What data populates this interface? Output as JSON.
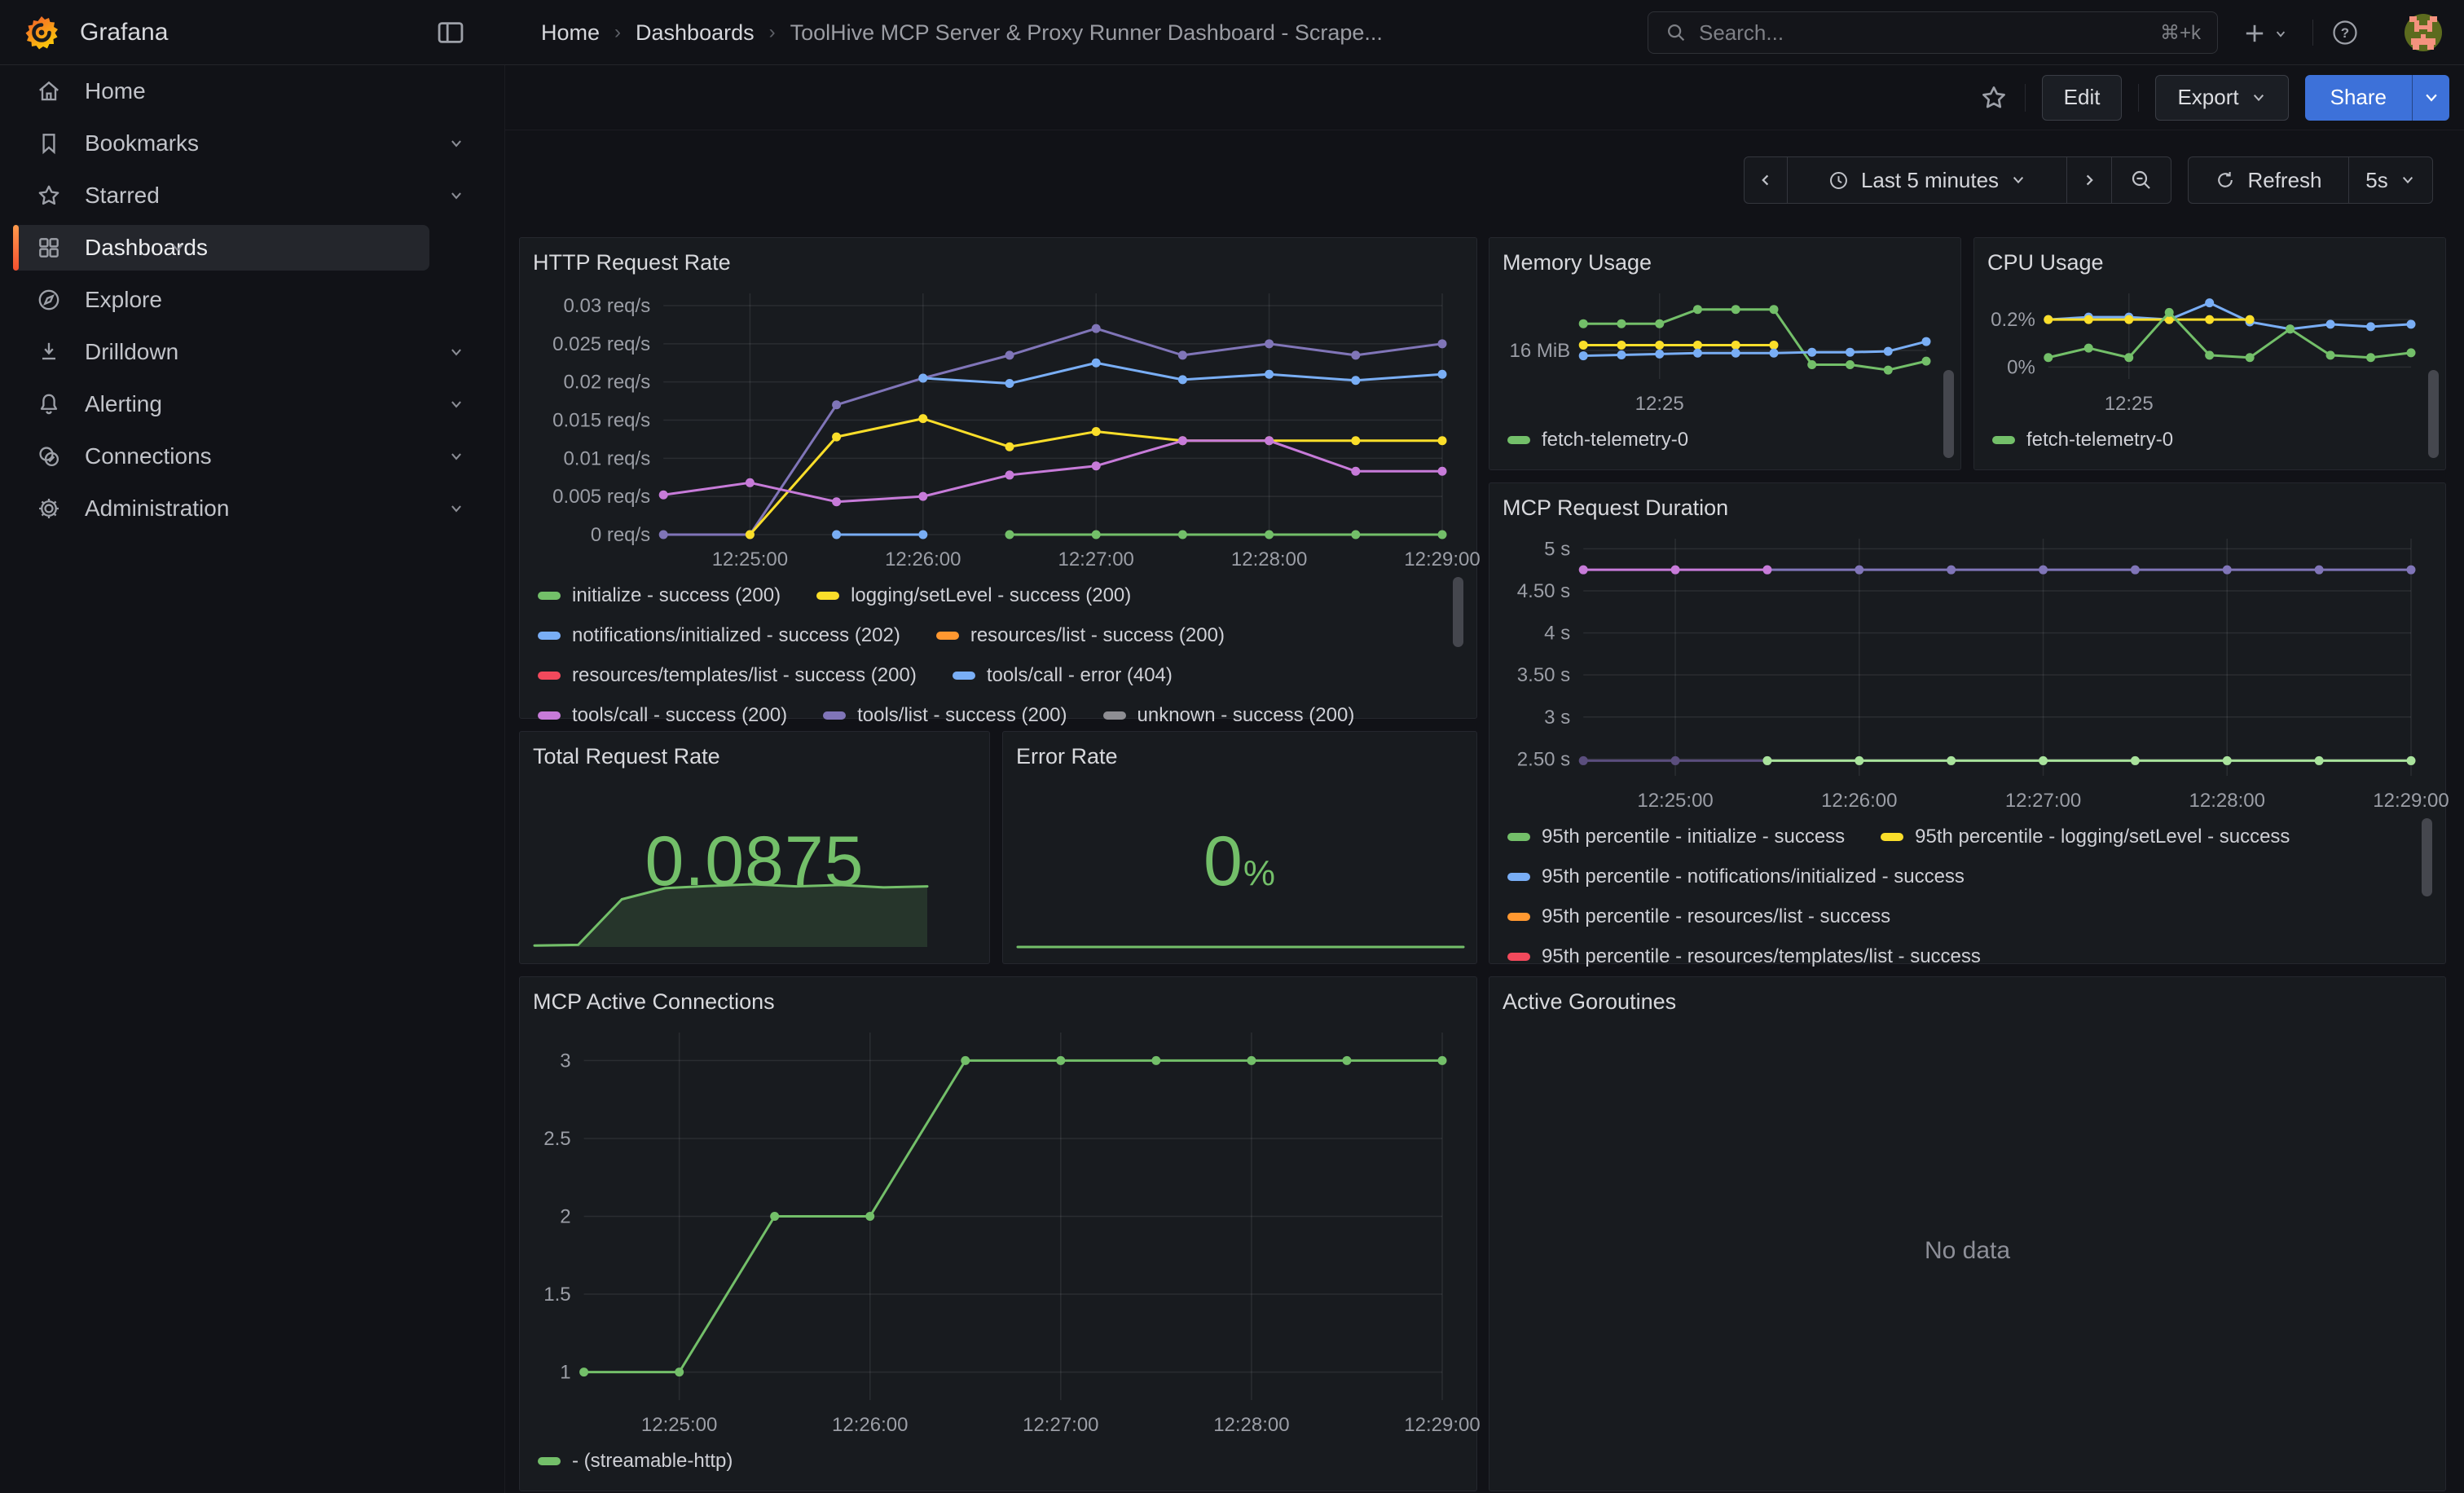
{
  "palette": {
    "green": "#73BF69",
    "light_green": "#A9E39C",
    "yellow": "#FADE2A",
    "blue": "#79AEF5",
    "orange": "#FF9830",
    "red": "#F2495C",
    "violet": "#C77BD9",
    "purple": "#8075B8",
    "dark_purple": "#5A4E7D",
    "accent_blue": "#3D71D9",
    "active_bar_top": "#FF9A4D",
    "active_bar_bottom": "#F4502F",
    "panel_bg": "#181B1F",
    "page_bg": "#111217",
    "text": "#D8D9DD",
    "tick_text": "#9B9EA6"
  },
  "header": {
    "brand": "Grafana",
    "breadcrumb": {
      "home": "Home",
      "section": "Dashboards",
      "current": "ToolHive MCP Server & Proxy Runner Dashboard - Scrape..."
    },
    "search": {
      "placeholder": "Search...",
      "shortcut": "⌘+k"
    }
  },
  "toolbar": {
    "edit": "Edit",
    "export": "Export",
    "share": "Share"
  },
  "timebar": {
    "range": "Last 5 minutes",
    "refresh": "Refresh",
    "interval": "5s"
  },
  "sidebar": {
    "items": [
      {
        "label": "Home",
        "icon": "home-icon",
        "has_submenu": false,
        "active": false
      },
      {
        "label": "Bookmarks",
        "icon": "bookmark-icon",
        "has_submenu": true,
        "active": false
      },
      {
        "label": "Starred",
        "icon": "star-icon",
        "has_submenu": true,
        "active": false
      },
      {
        "label": "Dashboards",
        "icon": "dashboards-grid-icon",
        "has_submenu": true,
        "active": true
      },
      {
        "label": "Explore",
        "icon": "compass-icon",
        "has_submenu": false,
        "active": false
      },
      {
        "label": "Drilldown",
        "icon": "drilldown-icon",
        "has_submenu": true,
        "active": false
      },
      {
        "label": "Alerting",
        "icon": "bell-icon",
        "has_submenu": true,
        "active": false
      },
      {
        "label": "Connections",
        "icon": "connections-icon",
        "has_submenu": true,
        "active": false
      },
      {
        "label": "Administration",
        "icon": "gear-icon",
        "has_submenu": true,
        "active": false
      }
    ]
  },
  "panels": {
    "http": {
      "title": "HTTP Request Rate",
      "chart_data": {
        "type": "line",
        "x": [
          "12:24:30",
          "12:25:00",
          "12:25:30",
          "12:26:00",
          "12:26:30",
          "12:27:00",
          "12:27:30",
          "12:28:00",
          "12:28:30",
          "12:29:00"
        ],
        "xticks": [
          {
            "i": 1,
            "label": "12:25:00"
          },
          {
            "i": 3,
            "label": "12:26:00"
          },
          {
            "i": 5,
            "label": "12:27:00"
          },
          {
            "i": 7,
            "label": "12:28:00"
          },
          {
            "i": 9,
            "label": "12:29:00"
          }
        ],
        "ylim": [
          0,
          0.0316
        ],
        "yticks": [
          {
            "v": 0,
            "label": "0 req/s"
          },
          {
            "v": 0.005,
            "label": "0.005 req/s"
          },
          {
            "v": 0.01,
            "label": "0.01 req/s"
          },
          {
            "v": 0.015,
            "label": "0.015 req/s"
          },
          {
            "v": 0.02,
            "label": "0.02 req/s"
          },
          {
            "v": 0.025,
            "label": "0.025 req/s"
          },
          {
            "v": 0.03,
            "label": "0.03 req/s"
          }
        ],
        "series": [
          {
            "name": "tools/list - success (200)",
            "color": "#8075B8",
            "values": [
              0,
              0,
              0.017,
              0.0205,
              0.0235,
              0.027,
              0.0235,
              0.025,
              0.0235,
              0.025
            ]
          },
          {
            "name": "notifications/initialized - success (202)",
            "color": "#79AEF5",
            "values": [
              null,
              null,
              null,
              0.0205,
              0.0198,
              0.0225,
              0.0203,
              0.021,
              0.0202,
              0.021
            ]
          },
          {
            "name": "tools/call - error (404)",
            "color": "#79AEF5",
            "values": [
              null,
              null,
              0,
              0,
              null,
              null,
              null,
              null,
              null,
              null
            ]
          },
          {
            "name": "logging/setLevel - success (200)",
            "color": "#FADE2A",
            "values": [
              null,
              0,
              0.0128,
              0.0152,
              0.0115,
              0.0135,
              0.0123,
              0.0123,
              0.0123,
              0.0123
            ]
          },
          {
            "name": "tools/call - success (200)",
            "color": "#C77BD9",
            "values": [
              0.0052,
              0.0068,
              0.0043,
              0.005,
              0.0078,
              0.009,
              0.0123,
              0.0123,
              0.0083,
              0.0083
            ]
          },
          {
            "name": "initialize - success (200)",
            "color": "#73BF69",
            "values": [
              null,
              null,
              null,
              null,
              0,
              0,
              0,
              0,
              0,
              0
            ]
          }
        ],
        "legend_rows": [
          [
            {
              "color": "#73BF69",
              "label": "initialize - success (200)"
            },
            {
              "color": "#FADE2A",
              "label": "logging/setLevel - success (200)"
            }
          ],
          [
            {
              "color": "#79AEF5",
              "label": "notifications/initialized - success (202)"
            },
            {
              "color": "#FF9830",
              "label": "resources/list - success (200)"
            }
          ],
          [
            {
              "color": "#F2495C",
              "label": "resources/templates/list - success (200)"
            },
            {
              "color": "#79AEF5",
              "label": "tools/call - error (404)"
            }
          ],
          [
            {
              "color": "#C77BD9",
              "label": "tools/call - success (200)"
            },
            {
              "color": "#8075B8",
              "label": "tools/list - success (200)"
            },
            {
              "color": "#8E8E93",
              "label": "unknown - success (200)"
            }
          ]
        ]
      }
    },
    "memory": {
      "title": "Memory Usage",
      "chart_data": {
        "type": "line",
        "x": [
          "12:24:30",
          "12:24:45",
          "12:25:00",
          "12:25:15",
          "12:25:30",
          "12:25:45",
          "12:26:00",
          "12:26:15",
          "12:26:30",
          "12:26:45"
        ],
        "xticks": [
          {
            "i": 2,
            "label": "12:25"
          }
        ],
        "ylim": [
          14.4,
          19.2
        ],
        "yticks": [
          {
            "v": 16,
            "label": "16 MiB"
          }
        ],
        "series": [
          {
            "name": "fetch-telemetry-0",
            "color": "#73BF69",
            "values": [
              17.5,
              17.5,
              17.5,
              18.3,
              18.3,
              18.3,
              15.2,
              15.2,
              14.9,
              15.4
            ]
          },
          {
            "name": "",
            "color": "#FADE2A",
            "values": [
              16.3,
              16.3,
              16.3,
              16.3,
              16.3,
              16.3,
              null,
              null,
              null,
              null
            ]
          },
          {
            "name": "",
            "color": "#79AEF5",
            "values": [
              15.7,
              15.75,
              15.8,
              15.85,
              15.85,
              15.85,
              15.9,
              15.9,
              15.95,
              16.5
            ]
          }
        ],
        "legend_rows": [
          [
            {
              "color": "#73BF69",
              "label": "fetch-telemetry-0"
            }
          ]
        ]
      }
    },
    "cpu": {
      "title": "CPU Usage",
      "chart_data": {
        "type": "line",
        "x": [
          "12:24:30",
          "12:24:45",
          "12:25:00",
          "12:25:15",
          "12:25:30",
          "12:25:45",
          "12:26:00",
          "12:26:15",
          "12:26:30",
          "12:26:45"
        ],
        "xticks": [
          {
            "i": 2,
            "label": "12:25"
          }
        ],
        "ylim": [
          -0.05,
          0.31
        ],
        "yticks": [
          {
            "v": 0.2,
            "label": "0.2%"
          },
          {
            "v": 0,
            "label": "0%"
          }
        ],
        "series": [
          {
            "name": "",
            "color": "#79AEF5",
            "values": [
              0.2,
              0.21,
              0.21,
              0.2,
              0.27,
              0.19,
              0.16,
              0.18,
              0.17,
              0.18
            ]
          },
          {
            "name": "",
            "color": "#FADE2A",
            "values": [
              0.2,
              0.2,
              0.2,
              0.2,
              0.2,
              0.2,
              null,
              null,
              null,
              null
            ]
          },
          {
            "name": "fetch-telemetry-0",
            "color": "#73BF69",
            "values": [
              0.04,
              0.08,
              0.04,
              0.23,
              0.05,
              0.04,
              0.16,
              0.05,
              0.04,
              0.06
            ]
          }
        ],
        "legend_rows": [
          [
            {
              "color": "#73BF69",
              "label": "fetch-telemetry-0"
            }
          ]
        ]
      }
    },
    "duration": {
      "title": "MCP Request Duration",
      "chart_data": {
        "type": "line",
        "x": [
          "12:24:30",
          "12:25:00",
          "12:25:30",
          "12:26:00",
          "12:26:30",
          "12:27:00",
          "12:27:30",
          "12:28:00",
          "12:28:30",
          "12:29:00"
        ],
        "xticks": [
          {
            "i": 1,
            "label": "12:25:00"
          },
          {
            "i": 3,
            "label": "12:26:00"
          },
          {
            "i": 5,
            "label": "12:27:00"
          },
          {
            "i": 7,
            "label": "12:28:00"
          },
          {
            "i": 9,
            "label": "12:29:00"
          }
        ],
        "ylim": [
          2.3,
          5.12
        ],
        "yticks": [
          {
            "v": 2.5,
            "label": "2.50 s"
          },
          {
            "v": 3,
            "label": "3 s"
          },
          {
            "v": 3.5,
            "label": "3.50 s"
          },
          {
            "v": 4,
            "label": "4 s"
          },
          {
            "v": 4.5,
            "label": "4.50 s"
          },
          {
            "v": 5,
            "label": "5 s"
          }
        ],
        "series": [
          {
            "name": "",
            "color": "#8075B8",
            "values": [
              null,
              null,
              4.75,
              4.75,
              4.75,
              4.75,
              4.75,
              4.75,
              4.75,
              4.75
            ]
          },
          {
            "name": "",
            "color": "#C77BD9",
            "values": [
              4.75,
              4.75,
              4.75,
              null,
              null,
              null,
              null,
              null,
              null,
              null
            ]
          },
          {
            "name": "",
            "color": "#5A4E7D",
            "values": [
              2.48,
              2.48,
              2.48,
              null,
              null,
              null,
              null,
              null,
              null,
              null
            ]
          },
          {
            "name": "95th percentile - initialize - success",
            "color": "#A9E39C",
            "values": [
              null,
              null,
              2.48,
              2.48,
              2.48,
              2.48,
              2.48,
              2.48,
              2.48,
              2.48
            ]
          }
        ],
        "legend_rows": [
          [
            {
              "color": "#73BF69",
              "label": "95th percentile - initialize - success"
            },
            {
              "color": "#FADE2A",
              "label": "95th percentile - logging/setLevel - success"
            }
          ],
          [
            {
              "color": "#79AEF5",
              "label": "95th percentile - notifications/initialized - success"
            }
          ],
          [
            {
              "color": "#FF9830",
              "label": "95th percentile - resources/list - success"
            }
          ],
          [
            {
              "color": "#F2495C",
              "label": "95th percentile - resources/templates/list - success"
            }
          ]
        ]
      }
    },
    "total": {
      "title": "Total Request Rate",
      "value": "0.0875",
      "chart_data": {
        "type": "area",
        "x": [
          "12:24:30",
          "12:25:00",
          "12:25:30",
          "12:26:00",
          "12:26:30",
          "12:27:00",
          "12:27:30",
          "12:28:00",
          "12:28:30",
          "12:29:00"
        ],
        "ylim": [
          0,
          0.0965
        ],
        "series": [
          {
            "name": "total request rate",
            "color": "#73BF69",
            "width": 3,
            "points": false,
            "fill": "rgba(115,191,105,0.16)",
            "values": [
              0.002,
              0.003,
              0.068,
              0.084,
              0.087,
              0.0895,
              0.0865,
              0.0885,
              0.085,
              0.0865
            ]
          }
        ]
      }
    },
    "error": {
      "title": "Error Rate",
      "value": "0",
      "suffix": "%",
      "chart_data": {
        "type": "line",
        "x": [
          "12:24:30",
          "12:25:00",
          "12:25:30",
          "12:26:00",
          "12:26:30",
          "12:27:00",
          "12:27:30",
          "12:28:00",
          "12:28:30",
          "12:29:00"
        ],
        "ylim": [
          0,
          1
        ],
        "series": [
          {
            "name": "error rate",
            "color": "#73BF69",
            "width": 3,
            "points": false,
            "values": [
              0,
              0,
              0,
              0,
              0,
              0,
              0,
              0,
              0,
              0
            ]
          }
        ]
      }
    },
    "connections": {
      "title": "MCP Active Connections",
      "chart_data": {
        "type": "line",
        "x": [
          "12:24:30",
          "12:25:00",
          "12:25:30",
          "12:26:00",
          "12:26:30",
          "12:27:00",
          "12:27:30",
          "12:28:00",
          "12:28:30",
          "12:29:00"
        ],
        "xticks": [
          {
            "i": 1,
            "label": "12:25:00"
          },
          {
            "i": 3,
            "label": "12:26:00"
          },
          {
            "i": 5,
            "label": "12:27:00"
          },
          {
            "i": 7,
            "label": "12:28:00"
          },
          {
            "i": 9,
            "label": "12:29:00"
          }
        ],
        "ylim": [
          0.82,
          3.18
        ],
        "yticks": [
          {
            "v": 1,
            "label": "1"
          },
          {
            "v": 1.5,
            "label": "1.5"
          },
          {
            "v": 2,
            "label": "2"
          },
          {
            "v": 2.5,
            "label": "2.5"
          },
          {
            "v": 3,
            "label": "3"
          }
        ],
        "series": [
          {
            "name": "- (streamable-http)",
            "color": "#73BF69",
            "values": [
              1,
              1,
              2,
              2,
              3,
              3,
              3,
              3,
              3,
              3
            ]
          }
        ],
        "legend_rows": [
          [
            {
              "color": "#73BF69",
              "label": "- (streamable-http)"
            }
          ]
        ]
      }
    },
    "goroutines": {
      "title": "Active Goroutines",
      "no_data": "No data"
    }
  }
}
